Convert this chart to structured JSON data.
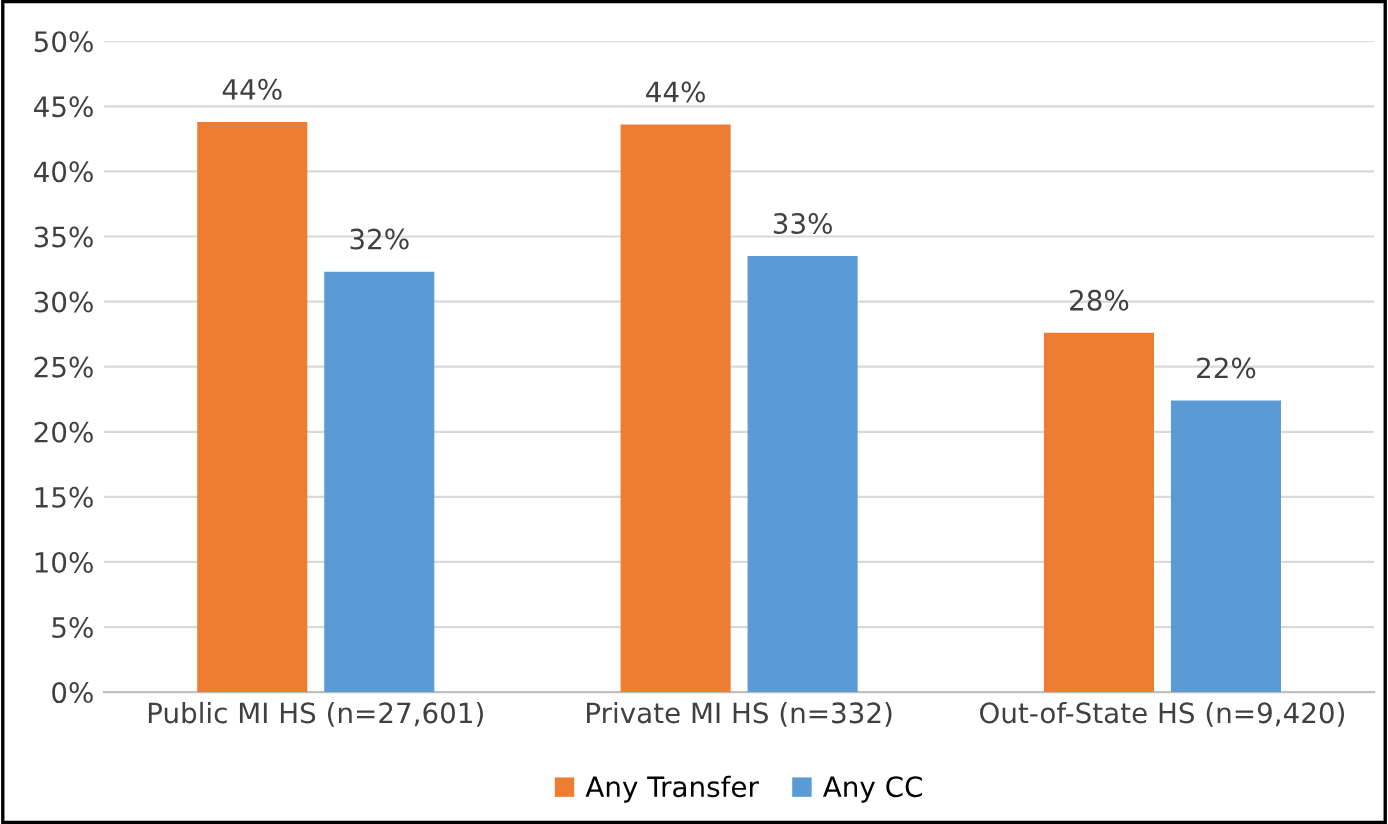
{
  "chart_data": {
    "type": "bar",
    "categories": [
      "Public MI HS (n=27,601)",
      "Private MI HS (n=332)",
      "Out-of-State HS (n=9,420)"
    ],
    "series": [
      {
        "name": "Any Transfer",
        "color": "#ed7d31",
        "values": [
          43.8,
          43.6,
          27.6
        ],
        "value_labels": [
          "44%",
          "44%",
          "28%"
        ]
      },
      {
        "name": "Any CC",
        "color": "#5b9bd5",
        "values": [
          32.3,
          33.5,
          22.4
        ],
        "value_labels": [
          "32%",
          "33%",
          "22%"
        ]
      }
    ],
    "ylim": [
      0,
      50
    ],
    "yticks": [
      {
        "value": 0,
        "label": "0%"
      },
      {
        "value": 5,
        "label": "5%"
      },
      {
        "value": 10,
        "label": "10%"
      },
      {
        "value": 15,
        "label": "15%"
      },
      {
        "value": 20,
        "label": "20%"
      },
      {
        "value": 25,
        "label": "25%"
      },
      {
        "value": 30,
        "label": "30%"
      },
      {
        "value": 35,
        "label": "35%"
      },
      {
        "value": 40,
        "label": "40%"
      },
      {
        "value": 45,
        "label": "45%"
      },
      {
        "value": 50,
        "label": "50%"
      }
    ],
    "grid": "y",
    "legend": "bottom"
  }
}
